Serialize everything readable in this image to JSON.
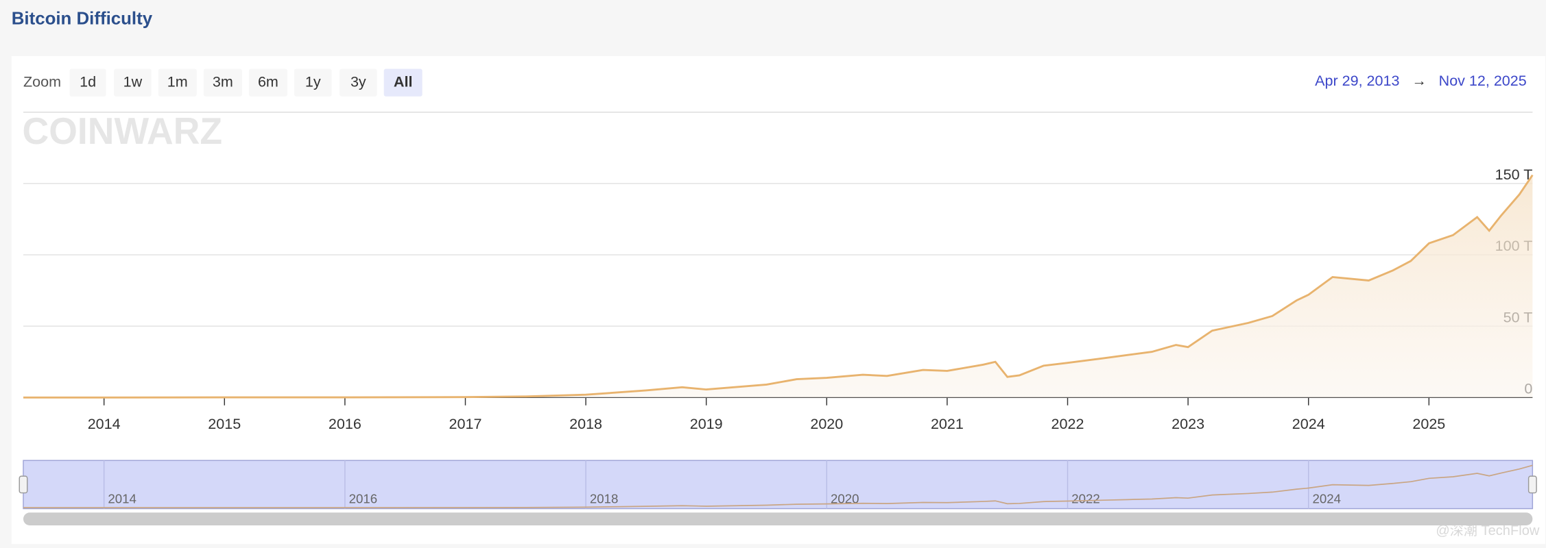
{
  "page_title": "Bitcoin Difficulty",
  "zoom": {
    "label": "Zoom",
    "buttons": [
      "1d",
      "1w",
      "1m",
      "3m",
      "6m",
      "1y",
      "3y",
      "All"
    ],
    "selected": "All"
  },
  "range": {
    "from": "Apr 29, 2013",
    "arrow": "→",
    "to": "Nov 12, 2025"
  },
  "watermark": "COINWARZ",
  "credit": "@深潮 TechFlow",
  "chart_data": {
    "type": "line",
    "x": [
      2013.33,
      2014.0,
      2015.0,
      2016.0,
      2017.0,
      2017.5,
      2018.0,
      2018.5,
      2018.8,
      2019.0,
      2019.5,
      2019.75,
      2020.0,
      2020.3,
      2020.5,
      2020.8,
      2021.0,
      2021.3,
      2021.4,
      2021.5,
      2021.6,
      2021.8,
      2022.0,
      2022.3,
      2022.5,
      2022.7,
      2022.9,
      2023.0,
      2023.2,
      2023.5,
      2023.7,
      2023.9,
      2024.0,
      2024.2,
      2024.5,
      2024.7,
      2024.85,
      2025.0,
      2025.2,
      2025.4,
      2025.5,
      2025.6,
      2025.75,
      2025.86
    ],
    "series": [
      {
        "color": "#e8b36e",
        "values": [
          0.01,
          0.0014,
          0.04,
          0.1,
          0.3,
          0.7,
          1.9,
          5.0,
          7.2,
          5.6,
          9.0,
          12.8,
          13.8,
          15.9,
          15.1,
          19.3,
          18.6,
          23.0,
          25.0,
          14.4,
          15.5,
          22.3,
          24.3,
          27.5,
          29.8,
          32.0,
          36.8,
          35.3,
          46.8,
          52.3,
          57.1,
          68.0,
          72.0,
          84.4,
          82.0,
          89.0,
          95.7,
          108.1,
          113.8,
          126.4,
          116.9,
          127.6,
          142.3,
          155.9
        ]
      }
    ],
    "xlim": [
      2013.33,
      2025.86
    ],
    "xticks": [
      2014,
      2015,
      2016,
      2017,
      2018,
      2019,
      2020,
      2021,
      2022,
      2023,
      2024,
      2025
    ],
    "ylim": [
      0,
      200
    ],
    "yticks": [
      0,
      {
        "value": 50,
        "label": "50 T"
      },
      {
        "value": 100,
        "label": "100 T"
      },
      {
        "value": 150,
        "label": "150 T"
      }
    ],
    "grid": true,
    "navigator_ticks": [
      2014,
      2016,
      2018,
      2020,
      2022,
      2024
    ]
  }
}
